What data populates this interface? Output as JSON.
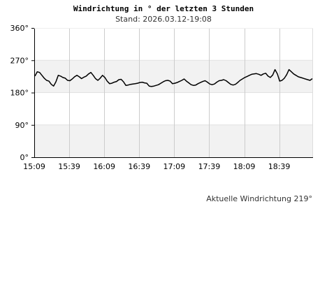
{
  "header": {
    "title": "Windrichtung in ° der letzten 3 Stunden",
    "subtitle": "Stand: 2026.03.12-19:08"
  },
  "footer": {
    "current_label": "Aktuelle Windrichtung 219°"
  },
  "colors": {
    "band": "#f2f2f2",
    "grid": "#cccccc",
    "line": "#000000",
    "axis": "#000000"
  },
  "chart_data": {
    "type": "line",
    "title": "Windrichtung in ° der letzten 3 Stunden",
    "subtitle": "Stand: 2026.03.12-19:08",
    "xlabel": "",
    "ylabel": "",
    "ylim": [
      0,
      360
    ],
    "yticks": [
      "0°",
      "90°",
      "180°",
      "270°",
      "360°"
    ],
    "xticks": [
      "15:09",
      "15:39",
      "16:09",
      "16:39",
      "17:09",
      "17:39",
      "18:09",
      "18:39"
    ],
    "x_start": "15:09",
    "x_end": "19:08",
    "grid": true,
    "shaded_bands_deg": [
      [
        180,
        270
      ],
      [
        0,
        90
      ]
    ],
    "series": [
      {
        "values": [
          226,
          238,
          236,
          228,
          220,
          214,
          212,
          203,
          198,
          210,
          228,
          226,
          222,
          220,
          214,
          213,
          218,
          224,
          228,
          224,
          219,
          223,
          226,
          232,
          236,
          228,
          219,
          214,
          220,
          228,
          222,
          212,
          205,
          206,
          209,
          211,
          216,
          217,
          210,
          200,
          201,
          203,
          204,
          205,
          206,
          208,
          209,
          207,
          206,
          198,
          197,
          198,
          200,
          202,
          206,
          210,
          213,
          214,
          212,
          205,
          206,
          208,
          211,
          214,
          218,
          212,
          207,
          202,
          200,
          201,
          205,
          208,
          211,
          213,
          209,
          204,
          202,
          204,
          209,
          213,
          214,
          216,
          213,
          208,
          203,
          201,
          203,
          208,
          214,
          218,
          222,
          225,
          228,
          231,
          232,
          233,
          231,
          228,
          232,
          234,
          226,
          222,
          229,
          244,
          232,
          212,
          214,
          220,
          230,
          244,
          238,
          232,
          228,
          224,
          222,
          220,
          218,
          216,
          214,
          219
        ]
      }
    ]
  }
}
